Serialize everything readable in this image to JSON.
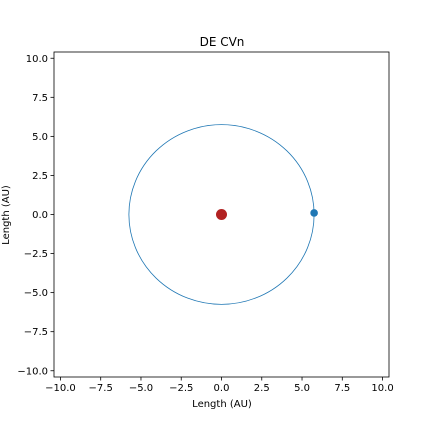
{
  "chart_data": {
    "type": "scatter",
    "title": "DE CVn",
    "xlabel": "Length (AU)",
    "ylabel": "Length (AU)",
    "xlim": [
      -10.4,
      10.4
    ],
    "ylim": [
      -10.4,
      10.4
    ],
    "xticks": [
      -10,
      -7.5,
      -5,
      -2.5,
      0,
      2.5,
      5,
      7.5,
      10
    ],
    "yticks": [
      -10,
      -7.5,
      -5,
      -2.5,
      0,
      2.5,
      5,
      7.5,
      10
    ],
    "xtick_labels": [
      "−10.0",
      "−7.5",
      "−5.0",
      "−2.5",
      "0.0",
      "2.5",
      "5.0",
      "7.5",
      "10.0"
    ],
    "ytick_labels": [
      "−10.0",
      "−7.5",
      "−5.0",
      "−2.5",
      "0.0",
      "2.5",
      "5.0",
      "7.5",
      "10.0"
    ],
    "grid": false,
    "orbit": {
      "center": [
        0,
        0
      ],
      "radius": 5.75,
      "color": "#1f77b4"
    },
    "star": {
      "x": 0,
      "y": 0,
      "color": "#b22222"
    },
    "planet": {
      "x": 5.75,
      "y": 0.1,
      "color": "#1f77b4"
    }
  }
}
